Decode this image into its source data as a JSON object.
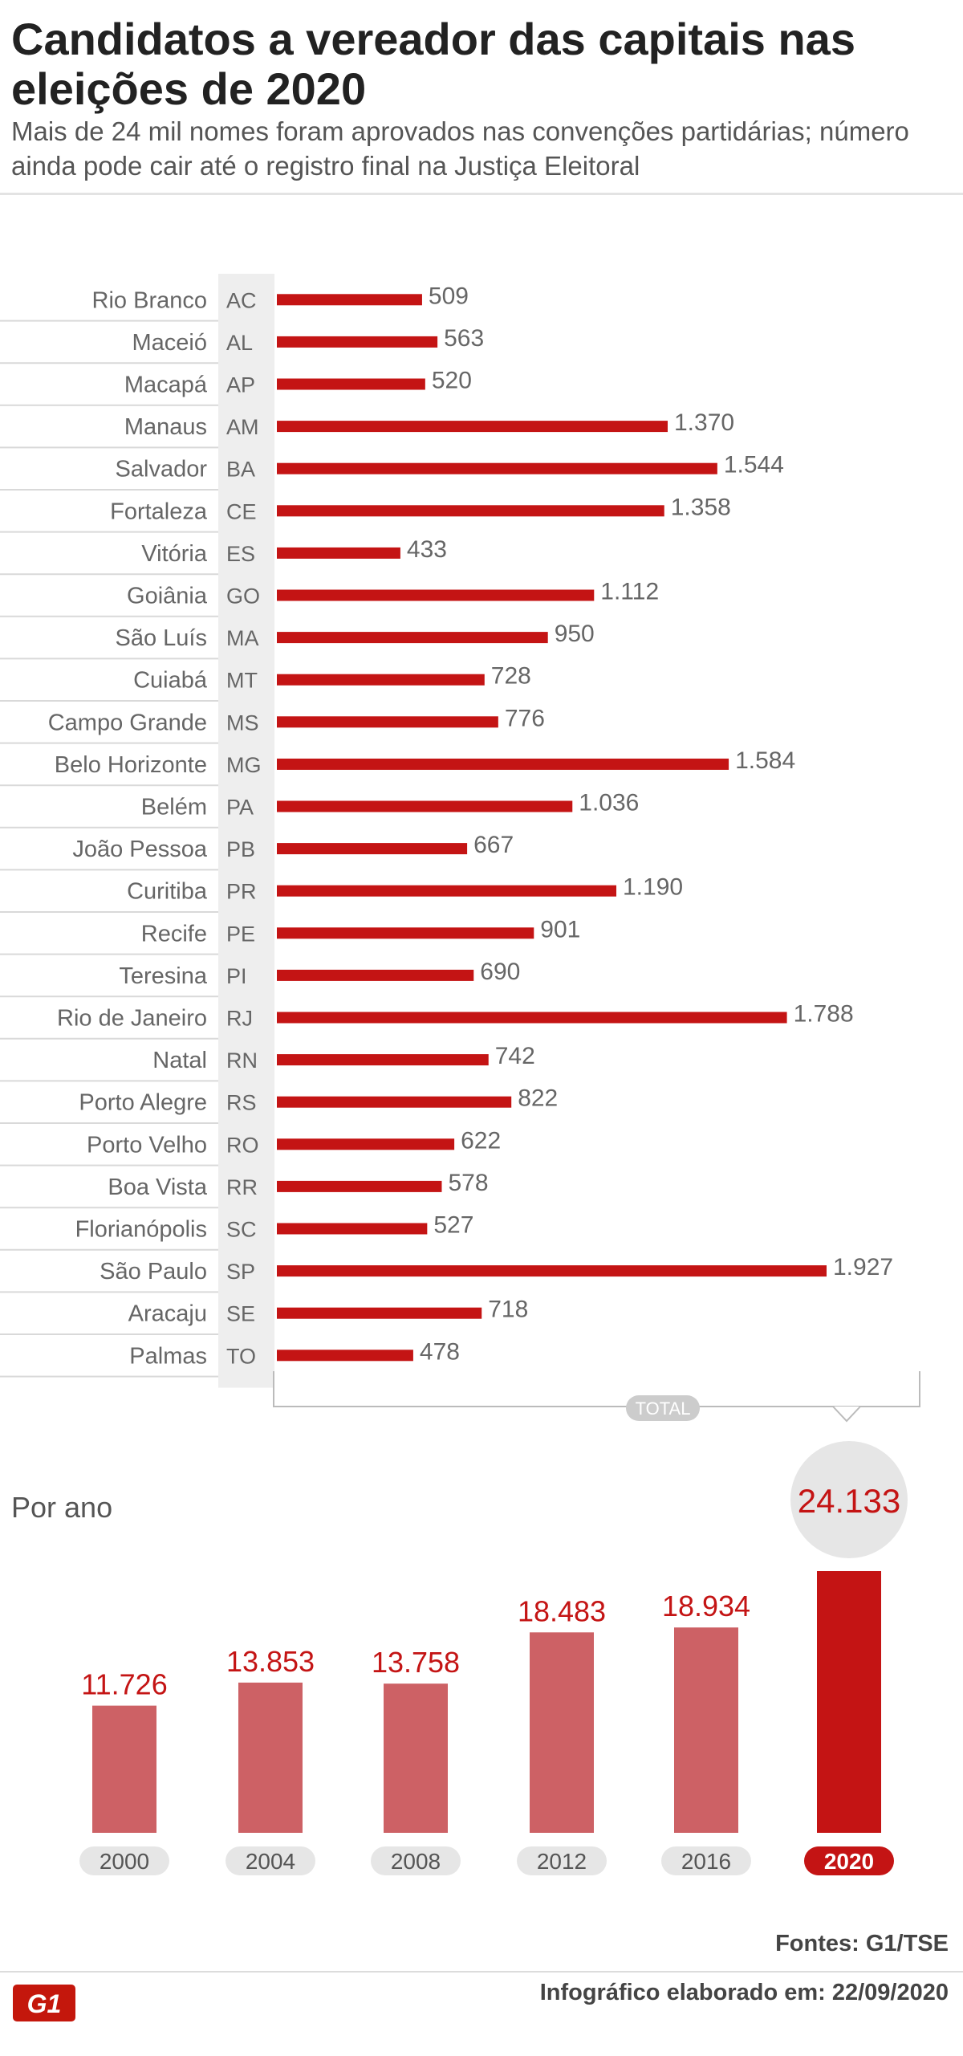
{
  "title": "Candidatos a vereador das capitais nas eleições de 2020",
  "subtitle": "Mais de 24 mil nomes foram aprovados nas convenções partidárias; número ainda pode cair até o registro final na Justiça Eleitoral",
  "colors": {
    "bar_red": "#c41414",
    "bar_pink": "#cd6165",
    "label_gray": "#666666",
    "uf_bg": "#eeeeee",
    "pill_gray": "#e6e6e6",
    "circle_gray": "#e6e6e6"
  },
  "chart_data": [
    {
      "type": "bar",
      "orientation": "horizontal",
      "categories": [
        "Rio Branco",
        "Maceió",
        "Macapá",
        "Manaus",
        "Salvador",
        "Fortaleza",
        "Vitória",
        "Goiânia",
        "São Luís",
        "Cuiabá",
        "Campo Grande",
        "Belo Horizonte",
        "Belém",
        "João Pessoa",
        "Curitiba",
        "Recife",
        "Teresina",
        "Rio de Janeiro",
        "Natal",
        "Porto Alegre",
        "Porto Velho",
        "Boa Vista",
        "Florianópolis",
        "São Paulo",
        "Aracaju",
        "Palmas"
      ],
      "uf": [
        "AC",
        "AL",
        "AP",
        "AM",
        "BA",
        "CE",
        "ES",
        "GO",
        "MA",
        "MT",
        "MS",
        "MG",
        "PA",
        "PB",
        "PR",
        "PE",
        "PI",
        "RJ",
        "RN",
        "RS",
        "RO",
        "RR",
        "SC",
        "SP",
        "SE",
        "TO"
      ],
      "values": [
        509,
        563,
        520,
        1370,
        1544,
        1358,
        433,
        1112,
        950,
        728,
        776,
        1584,
        1036,
        667,
        1190,
        901,
        690,
        1788,
        742,
        822,
        622,
        578,
        527,
        1927,
        718,
        478
      ],
      "value_labels": [
        "509",
        "563",
        "520",
        "1.370",
        "1.544",
        "1.358",
        "433",
        "1.112",
        "950",
        "728",
        "776",
        "1.584",
        "1.036",
        "667",
        "1.190",
        "901",
        "690",
        "1.788",
        "742",
        "822",
        "622",
        "578",
        "527",
        "1.927",
        "718",
        "478"
      ],
      "xlim": [
        0,
        1927
      ],
      "total_label": "TOTAL"
    },
    {
      "type": "bar",
      "title": "Por ano",
      "categories": [
        "2000",
        "2004",
        "2008",
        "2012",
        "2016",
        "2020"
      ],
      "values": [
        11726,
        13853,
        13758,
        18483,
        18934,
        24133
      ],
      "value_labels": [
        "11.726",
        "13.853",
        "13.758",
        "18.483",
        "18.934",
        "24.133"
      ],
      "highlight": "2020",
      "ylim": [
        0,
        24133
      ]
    }
  ],
  "footer": {
    "source": "Fontes: G1/TSE",
    "date": "Infográfico elaborado em: 22/09/2020",
    "logo": "G1"
  }
}
